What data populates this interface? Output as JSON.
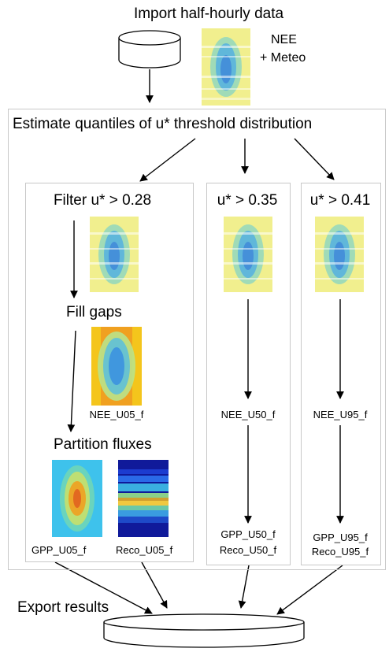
{
  "import": {
    "title": "Import half-hourly data",
    "nee_label": "NEE",
    "meteo_label": "+ Meteo"
  },
  "estimate": {
    "title": "Estimate quantiles of u* threshold distribution"
  },
  "branches": {
    "left": {
      "filter_label": "Filter u* > 0.28",
      "fill_label": "Fill gaps",
      "partition_label": "Partition fluxes",
      "nee_out": "NEE_U05_f",
      "gpp_out": "GPP_U05_f",
      "reco_out": "Reco_U05_f"
    },
    "middle": {
      "filter_label": "u* > 0.35",
      "nee_out": "NEE_U50_f",
      "gpp_out": "GPP_U50_f",
      "reco_out": "Reco_U50_f"
    },
    "right": {
      "filter_label": "u* > 0.41",
      "nee_out": "NEE_U95_f",
      "gpp_out": "GPP_U95_f",
      "reco_out": "Reco_U95_f"
    }
  },
  "export": {
    "title": "Export results"
  },
  "colors": {
    "box_border": "#c8c8c8",
    "arrow": "#000000",
    "heat_yellow": "#f1ef8e",
    "heat_blue": "#3a8fe0",
    "heat_orange": "#f0a020",
    "heat_navy": "#101a9a"
  },
  "icons": {
    "database": "cylinder-icon",
    "heatmaps": [
      "heatmap-gapped",
      "heatmap-filled",
      "heatmap-gpp",
      "heatmap-reco"
    ]
  }
}
